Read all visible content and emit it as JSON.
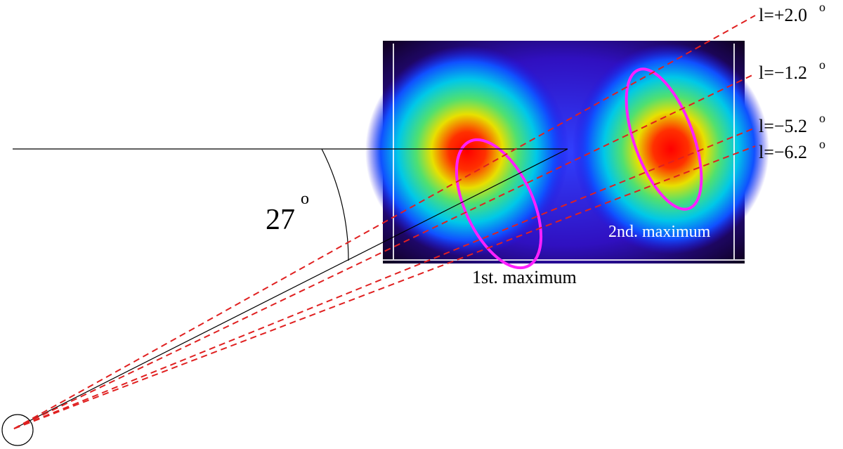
{
  "lines": [
    {
      "label": "l=+2.0",
      "sup": "o"
    },
    {
      "label": "l=−1.2",
      "sup": "o"
    },
    {
      "label": "l=−5.2",
      "sup": "o"
    },
    {
      "label": "l=−6.2",
      "sup": "o"
    }
  ],
  "angle": {
    "label": "27",
    "sup": "o"
  },
  "maxima": {
    "first": "1st. maximum",
    "second": "2nd. maximum"
  }
}
